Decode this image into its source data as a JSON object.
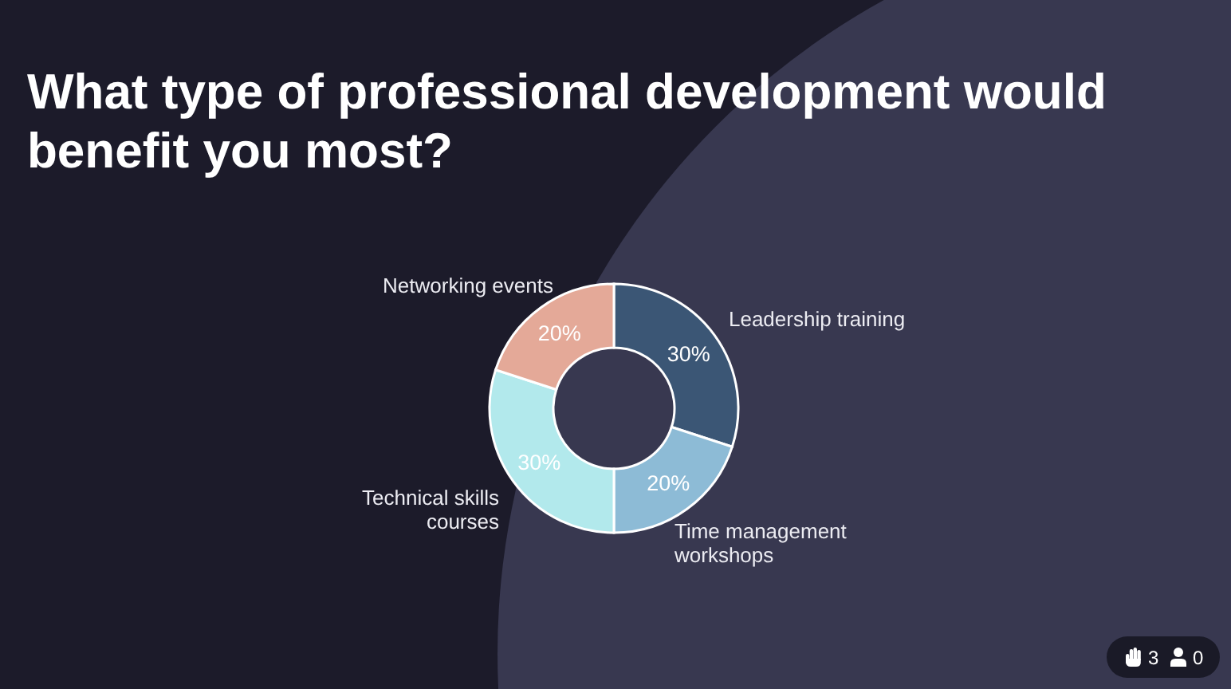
{
  "chart_data": {
    "type": "donut",
    "title": "What type of professional development would benefit you most?",
    "categories": [
      "Leadership training",
      "Time management workshops",
      "Technical skills courses",
      "Networking events"
    ],
    "values": [
      30,
      20,
      30,
      20
    ],
    "colors": [
      "#3b5675",
      "#8dbbd6",
      "#b2e9ec",
      "#e4a998"
    ],
    "value_labels": [
      "30%",
      "20%",
      "30%",
      "20%"
    ],
    "annotations": [
      "3",
      "0"
    ]
  }
}
